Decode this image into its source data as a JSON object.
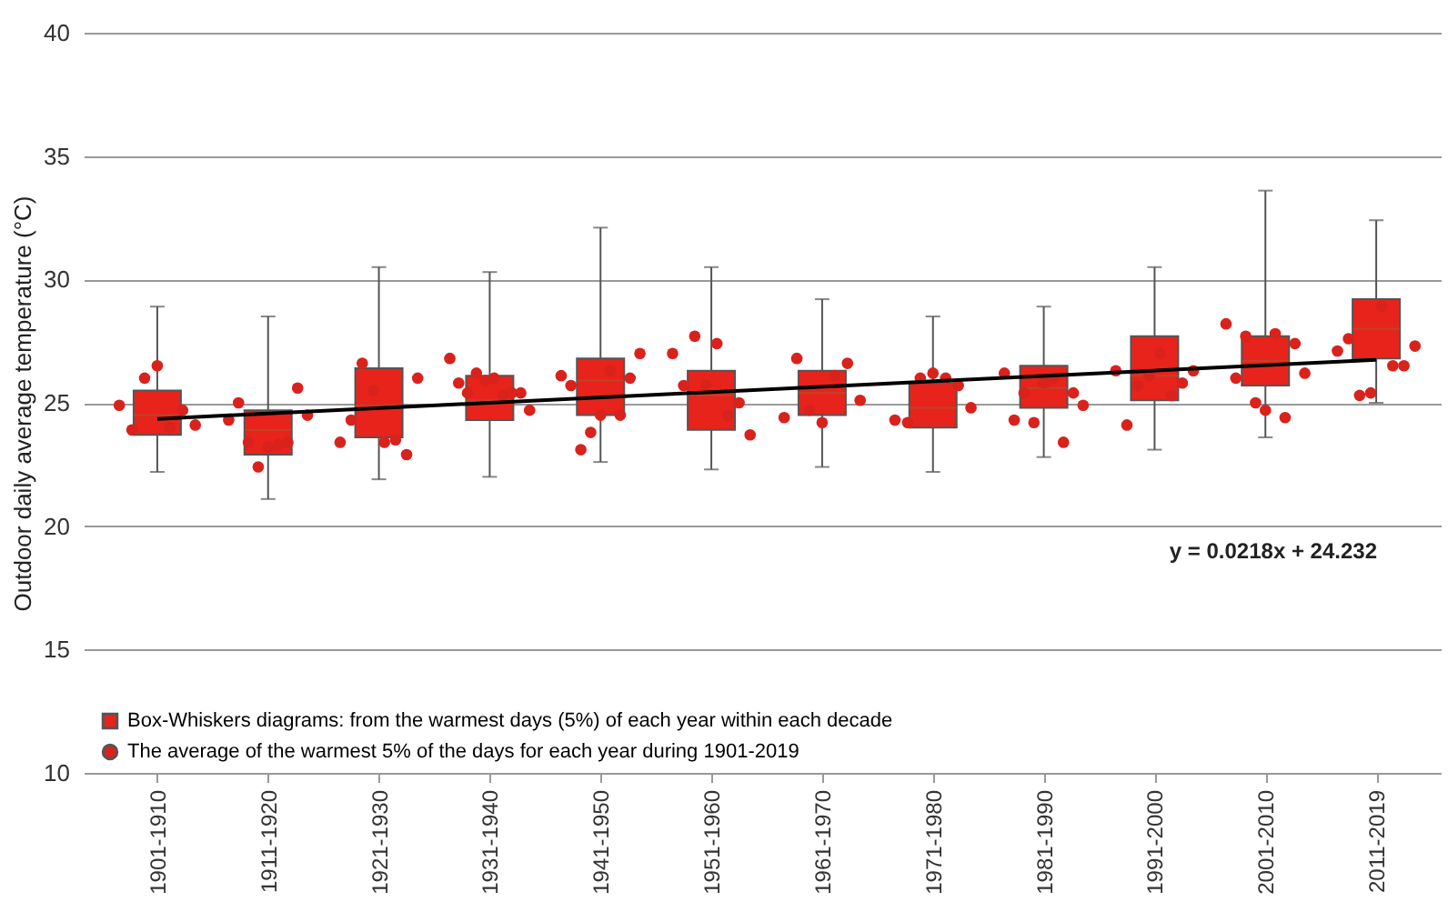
{
  "chart_data": {
    "type": "box",
    "ylabel": "Outdoor daily average temperature (°C)",
    "categories": [
      "1901-1910",
      "1911-1920",
      "1921-1930",
      "1931-1940",
      "1941-1950",
      "1951-1960",
      "1961-1970",
      "1971-1980",
      "1981-1990",
      "1991-2000",
      "2001-2010",
      "2011-2019"
    ],
    "ylim": [
      10,
      40
    ],
    "yticks": [
      10,
      15,
      20,
      25,
      30,
      35,
      40
    ],
    "grid": "y",
    "legend": "bottom left",
    "annotations": [
      "y = 0.0218x + 24.232"
    ],
    "series": [
      {
        "type": "box",
        "name": "Box-Whiskers diagrams: from the warmest days (5%) of each year within each decade",
        "color": "#e8231b",
        "boxes": [
          {
            "low": 22.2,
            "q1": 23.7,
            "median": 24.5,
            "q3": 25.5,
            "high": 28.9
          },
          {
            "low": 21.1,
            "q1": 22.9,
            "median": 23.9,
            "q3": 24.7,
            "high": 28.5
          },
          {
            "low": 21.9,
            "q1": 23.6,
            "median": 24.9,
            "q3": 26.4,
            "high": 30.5
          },
          {
            "low": 22.0,
            "q1": 24.3,
            "median": 25.1,
            "q3": 26.1,
            "high": 30.3
          },
          {
            "low": 22.6,
            "q1": 24.5,
            "median": 25.9,
            "q3": 26.8,
            "high": 32.1
          },
          {
            "low": 22.3,
            "q1": 23.9,
            "median": 25.3,
            "q3": 26.3,
            "high": 30.5
          },
          {
            "low": 22.4,
            "q1": 24.5,
            "median": 25.4,
            "q3": 26.3,
            "high": 29.2
          },
          {
            "low": 22.2,
            "q1": 24.0,
            "median": 24.8,
            "q3": 25.8,
            "high": 28.5
          },
          {
            "low": 22.8,
            "q1": 24.8,
            "median": 25.6,
            "q3": 26.5,
            "high": 28.9
          },
          {
            "low": 23.1,
            "q1": 25.1,
            "median": 26.1,
            "q3": 27.7,
            "high": 30.5
          },
          {
            "low": 23.6,
            "q1": 25.7,
            "median": 26.7,
            "q3": 27.7,
            "high": 33.6
          },
          {
            "low": 25.0,
            "q1": 26.8,
            "median": 28.0,
            "q3": 29.2,
            "high": 32.4
          }
        ]
      },
      {
        "type": "scatter",
        "name": "The average of the warmest 5% of the days for each year during 1901-2019",
        "color": "#d9221c",
        "marker": "circle",
        "x": [
          "1901-1910",
          "1901-1910",
          "1901-1910",
          "1901-1910",
          "1901-1910",
          "1901-1910",
          "1901-1910",
          "1911-1920",
          "1911-1920",
          "1911-1920",
          "1911-1920",
          "1911-1920",
          "1911-1920",
          "1911-1920",
          "1911-1920",
          "1911-1920",
          "1921-1930",
          "1921-1930",
          "1921-1930",
          "1921-1930",
          "1921-1930",
          "1921-1930",
          "1921-1930",
          "1921-1930",
          "1931-1940",
          "1931-1940",
          "1931-1940",
          "1931-1940",
          "1931-1940",
          "1931-1940",
          "1931-1940",
          "1931-1940",
          "1931-1940",
          "1931-1940",
          "1941-1950",
          "1941-1950",
          "1941-1950",
          "1941-1950",
          "1941-1950",
          "1941-1950",
          "1941-1950",
          "1941-1950",
          "1941-1950",
          "1951-1960",
          "1951-1960",
          "1951-1960",
          "1951-1960",
          "1951-1960",
          "1951-1960",
          "1951-1960",
          "1951-1960",
          "1961-1970",
          "1961-1970",
          "1961-1970",
          "1961-1970",
          "1961-1970",
          "1961-1970",
          "1961-1970",
          "1971-1980",
          "1971-1980",
          "1971-1980",
          "1971-1980",
          "1971-1980",
          "1971-1980",
          "1971-1980",
          "1981-1990",
          "1981-1990",
          "1981-1990",
          "1981-1990",
          "1981-1990",
          "1981-1990",
          "1981-1990",
          "1981-1990",
          "1981-1990",
          "1991-2000",
          "1991-2000",
          "1991-2000",
          "1991-2000",
          "1991-2000",
          "1991-2000",
          "1991-2000",
          "1991-2000",
          "2001-2010",
          "2001-2010",
          "2001-2010",
          "2001-2010",
          "2001-2010",
          "2001-2010",
          "2001-2010",
          "2001-2010",
          "2001-2010",
          "2011-2019",
          "2011-2019",
          "2011-2019",
          "2011-2019",
          "2011-2019",
          "2011-2019",
          "2011-2019",
          "2011-2019"
        ],
        "values": [
          24.9,
          23.9,
          26.0,
          26.5,
          24.0,
          24.7,
          24.1,
          24.3,
          25.0,
          23.4,
          22.4,
          23.2,
          23.3,
          23.4,
          25.6,
          24.5,
          23.4,
          24.3,
          26.6,
          25.5,
          23.4,
          23.5,
          22.9,
          26.0,
          26.8,
          25.8,
          25.4,
          26.2,
          25.9,
          26.0,
          25.3,
          25.4,
          25.4,
          24.7,
          26.1,
          25.7,
          23.1,
          23.8,
          24.5,
          26.3,
          24.5,
          26.0,
          27.0,
          27.0,
          25.7,
          27.7,
          25.7,
          27.4,
          24.5,
          25.0,
          23.7,
          24.4,
          26.8,
          24.7,
          24.2,
          26.1,
          26.6,
          25.1,
          24.3,
          24.2,
          26.0,
          26.2,
          26.0,
          25.7,
          24.8,
          26.2,
          24.3,
          25.4,
          24.2,
          25.8,
          26.0,
          23.4,
          25.4,
          24.9,
          26.3,
          24.1,
          25.7,
          26.1,
          27.0,
          25.3,
          25.8,
          26.3,
          28.2,
          26.0,
          27.7,
          25.0,
          24.7,
          27.8,
          24.4,
          27.4,
          26.2,
          27.1,
          27.6,
          25.3,
          25.4,
          28.9,
          26.5,
          26.5,
          27.3
        ]
      },
      {
        "type": "line",
        "color": "#000000",
        "x": [
          "1901-1910",
          "2011-2019"
        ],
        "values": [
          24.35,
          26.74
        ]
      }
    ]
  }
}
